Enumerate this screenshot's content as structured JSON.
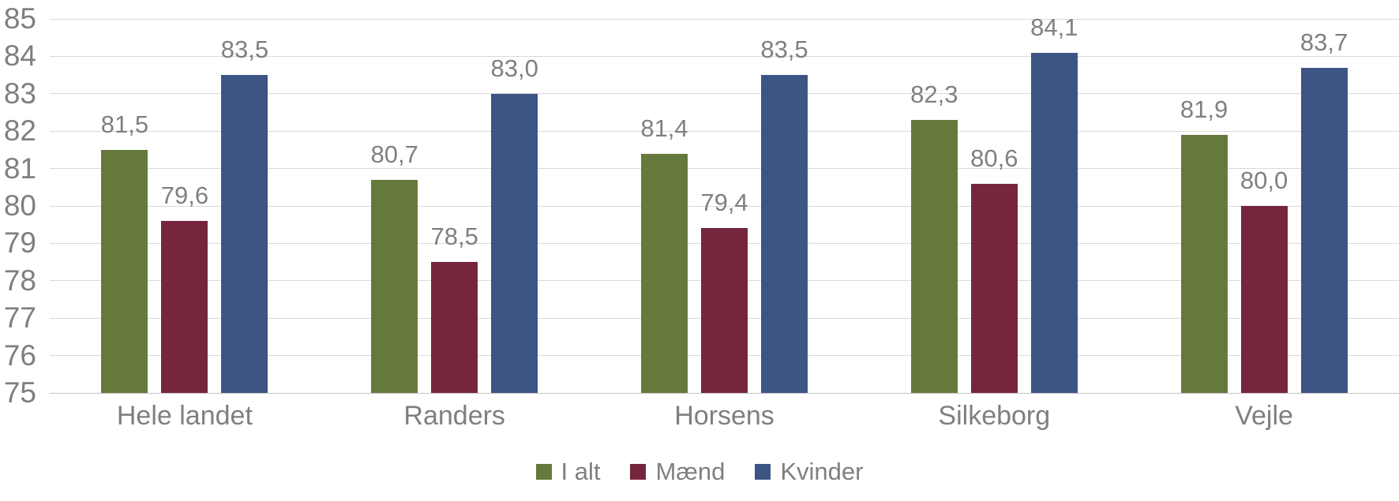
{
  "chart_data": {
    "type": "bar",
    "title": "",
    "xlabel": "",
    "ylabel": "",
    "categories": [
      "Hele landet",
      "Randers",
      "Horsens",
      "Silkeborg",
      "Vejle"
    ],
    "series": [
      {
        "name": "I alt",
        "color": "#66793C",
        "values": [
          81.5,
          80.7,
          81.4,
          82.3,
          81.9
        ],
        "labels": [
          "81,5",
          "80,7",
          "81,4",
          "82,3",
          "81,9"
        ]
      },
      {
        "name": "Mænd",
        "color": "#76263C",
        "values": [
          79.6,
          78.5,
          79.4,
          80.6,
          80.0
        ],
        "labels": [
          "79,6",
          "78,5",
          "79,4",
          "80,6",
          "80,0"
        ]
      },
      {
        "name": "Kvinder",
        "color": "#3D5585",
        "values": [
          83.5,
          83.0,
          83.5,
          84.1,
          83.7
        ],
        "labels": [
          "83,5",
          "83,0",
          "83,5",
          "84,1",
          "83,7"
        ]
      }
    ],
    "ylim": [
      75,
      85
    ],
    "ytick_step": 1,
    "yticks": [
      "75",
      "76",
      "77",
      "78",
      "79",
      "80",
      "81",
      "82",
      "83",
      "84",
      "85"
    ],
    "grid": true,
    "legend_position": "bottom",
    "decimal_separator": ","
  },
  "colors": {
    "gridline": "#d9d9d9",
    "axis_line": "#c3c3c3",
    "text": "#7f7f7f",
    "data_label": "#808080",
    "background": "#ffffff"
  }
}
